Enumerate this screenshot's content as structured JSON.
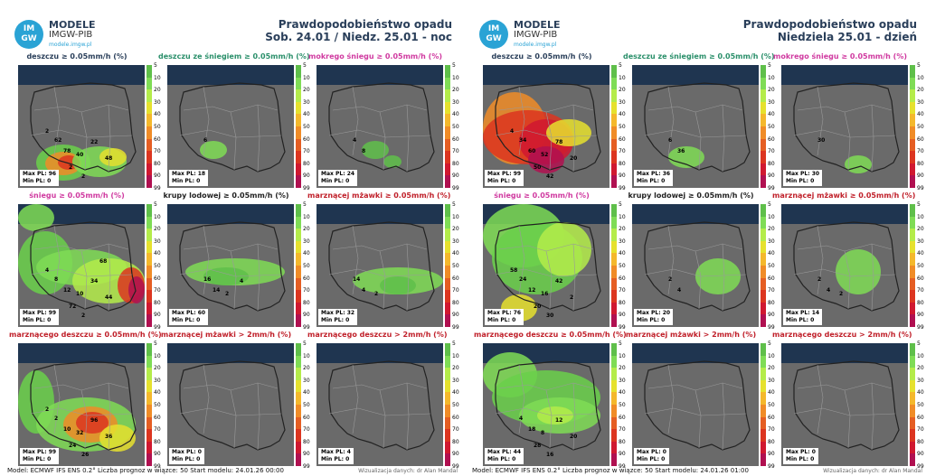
{
  "colors": {
    "title_blue": "#2a3f5a",
    "green_title": "#2a8f6a",
    "pink_title": "#d03aa0",
    "red_title": "#c0202a",
    "dark_title": "#222222"
  },
  "colorbar": {
    "ticks": [
      "5",
      "10",
      "20",
      "30",
      "40",
      "50",
      "60",
      "70",
      "80",
      "90",
      "99"
    ],
    "colors": [
      "#5fbf4a",
      "#7fdc55",
      "#b4ec4a",
      "#e6e12e",
      "#f4b82c",
      "#f08c27",
      "#e55e23",
      "#dc3520",
      "#d01830",
      "#b01050"
    ]
  },
  "left": {
    "logo_text": "IM GW",
    "brand": "MODELE",
    "brand2": "IMGW-PIB",
    "url": "modele.imgw.pl",
    "title1": "Prawdopodobieństwo opadu",
    "title2": "Sob. 24.01 / Niedz. 25.01 - noc",
    "footer": "Model: ECMWF IFS ENS 0.2°   Liczba prognoz w wiązce: 50   Start modelu: 24.01.26 00:00",
    "footer_right": "Wizualizacja danych: dr Alan Mandal",
    "cells": [
      {
        "title": "deszczu ≥ 0.05mm/h (%)",
        "color": "#2a3f5a",
        "max": "Max PL: 96",
        "min": "Min PL: 0",
        "nums": [
          "62",
          "78",
          "40",
          "22",
          "48",
          "2",
          "2",
          "2"
        ]
      },
      {
        "title": "deszczu ze śniegiem ≥ 0.05mm/h (%)",
        "color": "#2a8f6a",
        "max": "Max PL: 18",
        "min": "Min PL: 0",
        "nums": [
          "6"
        ]
      },
      {
        "title": "mokrego śniegu ≥ 0.05mm/h (%)",
        "color": "#d03aa0",
        "max": "Max PL: 24",
        "min": "Min PL: 0",
        "nums": [
          "4",
          "8"
        ]
      },
      {
        "title": "śniegu ≥ 0.05mm/h (%)",
        "color": "#d03aa0",
        "max": "Max PL: 99",
        "min": "Min PL: 0",
        "nums": [
          "8",
          "12",
          "10",
          "34",
          "44",
          "72",
          "2",
          "4",
          "68"
        ]
      },
      {
        "title": "krupy lodowej ≥ 0.05mm/h (%)",
        "color": "#222222",
        "max": "Max PL: 60",
        "min": "Min PL: 0",
        "nums": [
          "16",
          "14",
          "2",
          "4"
        ]
      },
      {
        "title": "marznącej mżawki ≥ 0.05mm/h (%)",
        "color": "#c0202a",
        "max": "Max PL: 32",
        "min": "Min PL: 0",
        "nums": [
          "14",
          "4",
          "2"
        ]
      },
      {
        "title": "marznącego deszczu ≥ 0.05mm/h (%)",
        "color": "#c0202a",
        "max": "Max PL: 99",
        "min": "Min PL: 0",
        "nums": [
          "2",
          "10",
          "32",
          "96",
          "36",
          "24",
          "26",
          "2"
        ]
      },
      {
        "title": "marznącej mżawki > 2mm/h (%)",
        "color": "#c0202a",
        "max": "Max PL: 0",
        "min": "Min PL: 0",
        "nums": []
      },
      {
        "title": "marznącego deszczu > 2mm/h (%)",
        "color": "#c0202a",
        "max": "Max PL: 4",
        "min": "Min PL: 0",
        "nums": []
      }
    ]
  },
  "right": {
    "logo_text": "IM GW",
    "brand": "MODELE",
    "brand2": "IMGW-PIB",
    "url": "modele.imgw.pl",
    "title1": "Prawdopodobieństwo opadu",
    "title2": "Niedziela 25.01 - dzień",
    "footer": "Model: ECMWF IFS ENS 0.2°   Liczba prognoz w wiązce: 50   Start modelu: 24.01.26  01:00",
    "footer_right": "Wizualizacja danych: dr Alan Mandal",
    "cells": [
      {
        "title": "deszczu ≥ 0.05mm/h (%)",
        "color": "#2a3f5a",
        "max": "Max PL: 99",
        "min": "Min PL: 0",
        "nums": [
          "34",
          "60",
          "52",
          "78",
          "20",
          "50",
          "42",
          "4"
        ]
      },
      {
        "title": "deszczu ze śniegiem ≥ 0.05mm/h (%)",
        "color": "#2a8f6a",
        "max": "Max PL: 36",
        "min": "Min PL: 0",
        "nums": [
          "6",
          "36"
        ]
      },
      {
        "title": "mokrego śniegu ≥ 0.05mm/h (%)",
        "color": "#d03aa0",
        "max": "Max PL: 30",
        "min": "Min PL: 0",
        "nums": [
          "30"
        ]
      },
      {
        "title": "śniegu ≥ 0.05mm/h (%)",
        "color": "#d03aa0",
        "max": "Max PL: 76",
        "min": "Min PL: 0",
        "nums": [
          "24",
          "12",
          "16",
          "42",
          "2",
          "20",
          "30",
          "58"
        ]
      },
      {
        "title": "krupy lodowej ≥ 0.05mm/h (%)",
        "color": "#222222",
        "max": "Max PL: 20",
        "min": "Min PL: 0",
        "nums": [
          "2",
          "4"
        ]
      },
      {
        "title": "marznącej mżawki ≥ 0.05mm/h (%)",
        "color": "#c0202a",
        "max": "Max PL: 14",
        "min": "Min PL: 0",
        "nums": [
          "2",
          "4",
          "2"
        ]
      },
      {
        "title": "marznącego deszczu ≥ 0.05mm/h (%)",
        "color": "#c0202a",
        "max": "Max PL: 44",
        "min": "Min PL: 0",
        "nums": [
          "4",
          "18",
          "8",
          "12",
          "20",
          "28",
          "16"
        ]
      },
      {
        "title": "marznącej mżawki > 2mm/h (%)",
        "color": "#c0202a",
        "max": "Max PL: 0",
        "min": "Min PL: 0",
        "nums": []
      },
      {
        "title": "marznącego deszczu > 2mm/h (%)",
        "color": "#c0202a",
        "max": "Max PL: 0",
        "min": "Min PL: 0",
        "nums": []
      }
    ]
  }
}
